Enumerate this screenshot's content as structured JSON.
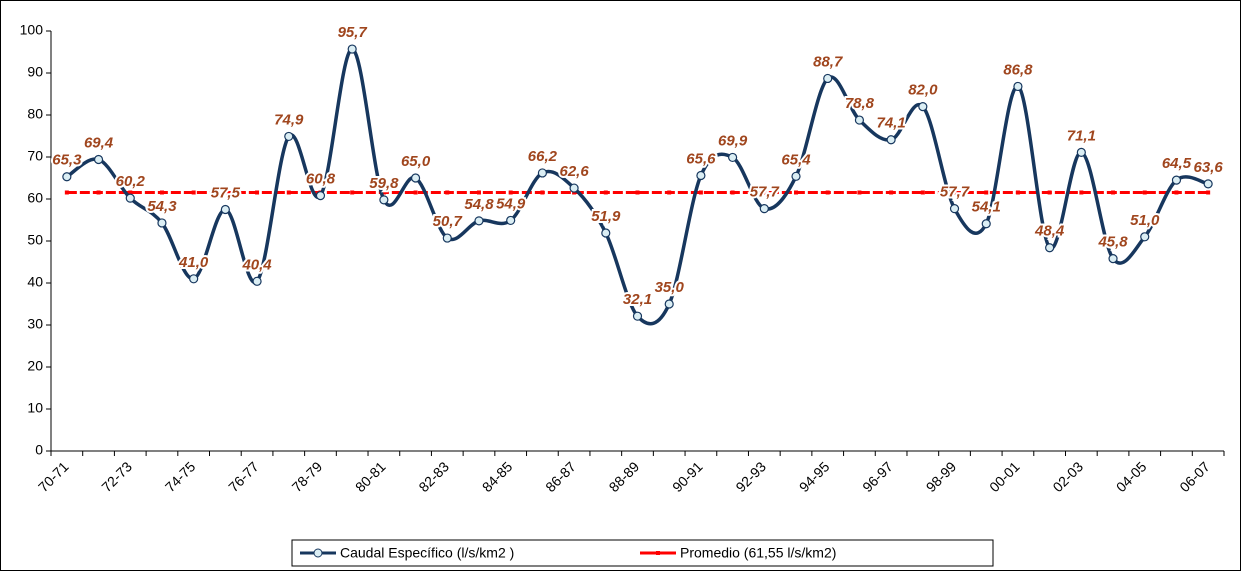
{
  "chart_data": {
    "type": "line",
    "categories": [
      "70-71",
      null,
      "72-73",
      null,
      "74-75",
      null,
      "76-77",
      null,
      "78-79",
      null,
      "80-81",
      null,
      "82-83",
      null,
      "84-85",
      null,
      "86-87",
      null,
      "88-89",
      null,
      "90-91",
      null,
      "92-93",
      null,
      "94-95",
      null,
      "96-97",
      null,
      "98-99",
      null,
      "00-01",
      null,
      "02-03",
      null,
      "04-05",
      null,
      "06-07"
    ],
    "series": [
      {
        "name": "Caudal Específico (l/s/km2 )",
        "color": "#17375e",
        "marker_fill": "#dbeef4",
        "values": [
          65.3,
          69.4,
          60.2,
          54.3,
          41.0,
          57.5,
          40.4,
          74.9,
          60.8,
          95.7,
          59.8,
          65.0,
          50.7,
          54.8,
          54.9,
          66.2,
          62.6,
          51.9,
          32.1,
          35.0,
          65.6,
          69.9,
          57.7,
          65.4,
          88.7,
          78.8,
          74.1,
          82.0,
          57.7,
          54.1,
          86.8,
          48.4,
          71.1,
          45.8,
          51.0,
          64.5,
          63.6
        ],
        "value_labels": [
          "65,3",
          "69,4",
          "60,2",
          "54,3",
          "41,0",
          "57,5",
          "40,4",
          "74,9",
          "60,8",
          "95,7",
          "59,8",
          "65,0",
          "50,7",
          "54,8",
          "54,9",
          "66,2",
          "62,6",
          "51,9",
          "32,1",
          "35,0",
          "65,6",
          "69,9",
          "57,7",
          "65,4",
          "88,7",
          "78,8",
          "74,1",
          "82,0",
          "57,7",
          "54,1",
          "86,8",
          "48,4",
          "71,1",
          "45,8",
          "51,0",
          "64,5",
          "63,6"
        ],
        "smooth": true
      },
      {
        "name": "Promedio (61,55 l/s/km2)",
        "color": "#ff0000",
        "values": [
          61.55,
          61.55,
          61.55,
          61.55,
          61.55,
          61.55,
          61.55,
          61.55,
          61.55,
          61.55,
          61.55,
          61.55,
          61.55,
          61.55,
          61.55,
          61.55,
          61.55,
          61.55,
          61.55,
          61.55,
          61.55,
          61.55,
          61.55,
          61.55,
          61.55,
          61.55,
          61.55,
          61.55,
          61.55,
          61.55,
          61.55,
          61.55,
          61.55,
          61.55,
          61.55,
          61.55,
          61.55
        ]
      }
    ],
    "ylim": [
      0,
      100
    ],
    "yticks": [
      0,
      10,
      20,
      30,
      40,
      50,
      60,
      70,
      80,
      90,
      100
    ],
    "grid": false,
    "legend": "bottom"
  }
}
